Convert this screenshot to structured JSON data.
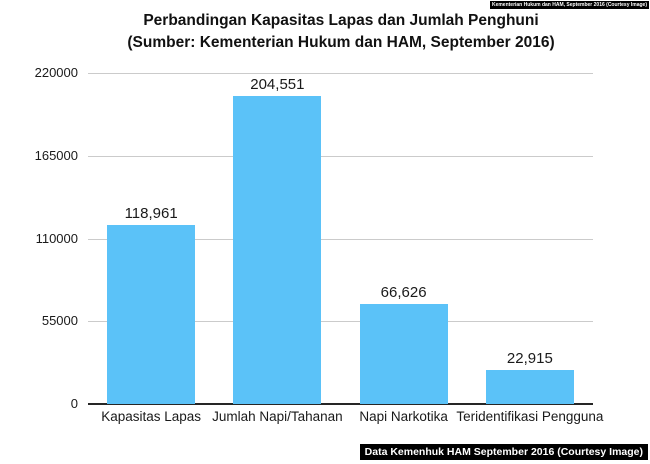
{
  "title": {
    "line1": "Perbandingan Kapasitas Lapas dan Jumlah Penghuni",
    "line2": "(Sumber: Kementerian Hukum dan HAM, September 2016)"
  },
  "badges": {
    "top_right": "Kementerian Hukum dan HAM, September 2016 (Courtesy Image)",
    "bottom_right": "Data Kemenhuk HAM September 2016 (Courtesy Image)"
  },
  "colors": {
    "bar": "#5BC2F8",
    "gridline": "#CBCBCB",
    "axis": "#262626",
    "text": "#1A1A1A",
    "badge_bg": "#000000",
    "badge_text": "#FFFFFF"
  },
  "chart_data": {
    "type": "bar",
    "title": "Perbandingan Kapasitas Lapas dan Jumlah Penghuni (Sumber: Kementerian Hukum dan HAM, September 2016)",
    "categories": [
      "Kapasitas Lapas",
      "Jumlah Napi/Tahanan",
      "Napi Narkotika",
      "Teridentifikasi Pengguna"
    ],
    "values": [
      118961,
      204551,
      66626,
      22915
    ],
    "value_labels": [
      "118,961",
      "204,551",
      "66,626",
      "22,915"
    ],
    "xlabel": "",
    "ylabel": "",
    "ylim": [
      0,
      220000
    ],
    "yticks": [
      0,
      55000,
      110000,
      165000,
      220000
    ],
    "ytick_labels": [
      "0",
      "55000",
      "110000",
      "165000",
      "220000"
    ],
    "grid": true,
    "legend": false
  }
}
